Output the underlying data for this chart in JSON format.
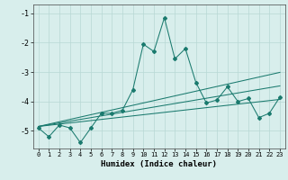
{
  "xlabel": "Humidex (Indice chaleur)",
  "x": [
    0,
    1,
    2,
    3,
    4,
    5,
    6,
    7,
    8,
    9,
    10,
    11,
    12,
    13,
    14,
    15,
    16,
    17,
    18,
    19,
    20,
    21,
    22,
    23
  ],
  "y_main": [
    -4.9,
    -5.2,
    -4.8,
    -4.9,
    -5.4,
    -4.9,
    -4.4,
    -4.4,
    -4.3,
    -3.6,
    -2.05,
    -2.3,
    -1.15,
    -2.55,
    -2.2,
    -3.35,
    -4.05,
    -3.95,
    -3.5,
    -4.0,
    -3.9,
    -4.55,
    -4.4,
    -3.85
  ],
  "y_line1": [
    -4.85,
    -4.77,
    -4.69,
    -4.61,
    -4.53,
    -4.45,
    -4.37,
    -4.29,
    -4.21,
    -4.13,
    -4.05,
    -3.97,
    -3.89,
    -3.81,
    -3.73,
    -3.65,
    -3.57,
    -3.49,
    -3.41,
    -3.33,
    -3.25,
    -3.17,
    -3.09,
    -3.01
  ],
  "y_line2": [
    -4.85,
    -4.79,
    -4.73,
    -4.67,
    -4.61,
    -4.55,
    -4.49,
    -4.43,
    -4.37,
    -4.31,
    -4.25,
    -4.19,
    -4.13,
    -4.07,
    -4.01,
    -3.95,
    -3.89,
    -3.83,
    -3.77,
    -3.71,
    -3.65,
    -3.59,
    -3.53,
    -3.47
  ],
  "y_line3": [
    -4.85,
    -4.81,
    -4.77,
    -4.73,
    -4.69,
    -4.65,
    -4.61,
    -4.57,
    -4.53,
    -4.49,
    -4.45,
    -4.41,
    -4.37,
    -4.33,
    -4.29,
    -4.25,
    -4.21,
    -4.17,
    -4.13,
    -4.09,
    -4.05,
    -4.01,
    -3.97,
    -3.93
  ],
  "line_color": "#1a7a6e",
  "bg_color": "#d8eeec",
  "grid_color": "#b8d8d4",
  "ylim": [
    -5.6,
    -0.7
  ],
  "yticks": [
    -5,
    -4,
    -3,
    -2,
    -1
  ]
}
